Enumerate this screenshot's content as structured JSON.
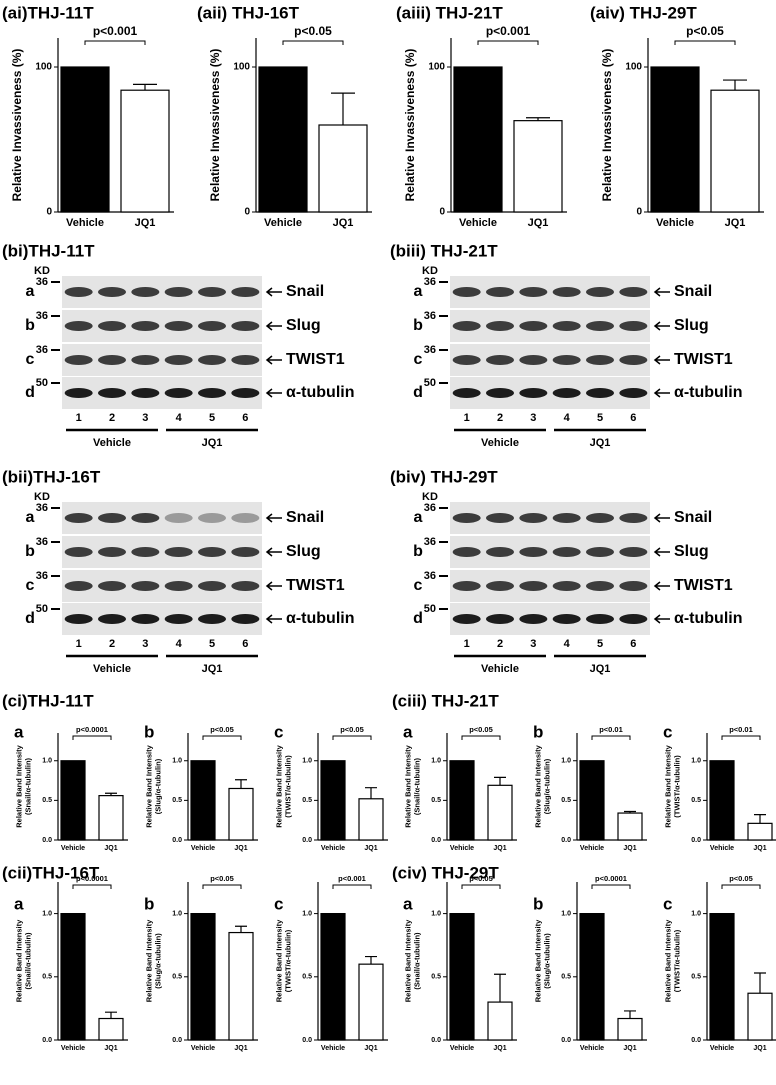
{
  "chart_data": [
    {
      "type": "bar",
      "title": "(ai)THJ-11T",
      "ylabel": [
        "Relative Invassiveness (%)"
      ],
      "categories": [
        "Vehicle",
        "JQ1"
      ],
      "values": [
        100,
        84
      ],
      "errors": [
        null,
        4
      ],
      "colors": [
        "#000000",
        "#ffffff"
      ],
      "annotation": "p<0.001",
      "ylim": [
        0,
        120
      ],
      "yticks": [
        0,
        100
      ]
    },
    {
      "type": "bar",
      "title": "(aii) THJ-16T",
      "ylabel": [
        "Relative Invassiveness (%)"
      ],
      "categories": [
        "Vehicle",
        "JQ1"
      ],
      "values": [
        100,
        60
      ],
      "errors": [
        null,
        22
      ],
      "colors": [
        "#000000",
        "#ffffff"
      ],
      "annotation": "p<0.05",
      "ylim": [
        0,
        120
      ],
      "yticks": [
        0,
        100
      ]
    },
    {
      "type": "bar",
      "title": "(aiii) THJ-21T",
      "ylabel": [
        "Relative Invassiveness (%)"
      ],
      "categories": [
        "Vehicle",
        "JQ1"
      ],
      "values": [
        100,
        63
      ],
      "errors": [
        null,
        2
      ],
      "colors": [
        "#000000",
        "#ffffff"
      ],
      "annotation": "p<0.001",
      "ylim": [
        0,
        120
      ],
      "yticks": [
        0,
        100
      ]
    },
    {
      "type": "bar",
      "title": "(aiv) THJ-29T",
      "ylabel": [
        "Relative Invassiveness (%)"
      ],
      "categories": [
        "Vehicle",
        "JQ1"
      ],
      "values": [
        100,
        84
      ],
      "errors": [
        null,
        7
      ],
      "colors": [
        "#000000",
        "#ffffff"
      ],
      "annotation": "p<0.05",
      "ylim": [
        0,
        120
      ],
      "yticks": [
        0,
        100
      ]
    },
    {
      "type": "bar",
      "title": "a",
      "ylabel": [
        "Relative Band Intensity",
        "(Snail/α-tubulin)"
      ],
      "categories": [
        "Vehicle",
        "JQ1"
      ],
      "values": [
        1,
        0.56
      ],
      "errors": [
        null,
        0.03
      ],
      "colors": [
        "#000000",
        "#ffffff"
      ],
      "annotation": "p<0.0001",
      "ylim": [
        0,
        1.35
      ],
      "yticks": [
        {
          "value": 0,
          "label": "0.0"
        },
        {
          "value": 0.5,
          "label": "0.5"
        },
        {
          "value": 1,
          "label": "1.0"
        }
      ]
    },
    {
      "type": "bar",
      "title": "b",
      "ylabel": [
        "Relative Band Intensity",
        "(Slug/α-tubulin)"
      ],
      "categories": [
        "Vehicle",
        "JQ1"
      ],
      "values": [
        1,
        0.65
      ],
      "errors": [
        null,
        0.11
      ],
      "colors": [
        "#000000",
        "#ffffff"
      ],
      "annotation": "p<0.05",
      "ylim": [
        0,
        1.35
      ],
      "yticks": [
        {
          "value": 0,
          "label": "0.0"
        },
        {
          "value": 0.5,
          "label": "0.5"
        },
        {
          "value": 1,
          "label": "1.0"
        }
      ]
    },
    {
      "type": "bar",
      "title": "c",
      "ylabel": [
        "Relative Band Intensity",
        "(TWIST/α-tubulin)"
      ],
      "categories": [
        "Vehicle",
        "JQ1"
      ],
      "values": [
        1,
        0.52
      ],
      "errors": [
        null,
        0.14
      ],
      "colors": [
        "#000000",
        "#ffffff"
      ],
      "annotation": "p<0.05",
      "ylim": [
        0,
        1.35
      ],
      "yticks": [
        {
          "value": 0,
          "label": "0.0"
        },
        {
          "value": 0.5,
          "label": "0.5"
        },
        {
          "value": 1,
          "label": "1.0"
        }
      ]
    },
    {
      "type": "bar",
      "title": "a",
      "ylabel": [
        "Relative Band Intensity",
        "(Snail/α-tubulin)"
      ],
      "categories": [
        "Vehicle",
        "JQ1"
      ],
      "values": [
        1,
        0.69
      ],
      "errors": [
        null,
        0.1
      ],
      "colors": [
        "#000000",
        "#ffffff"
      ],
      "annotation": "p<0.05",
      "ylim": [
        0,
        1.35
      ],
      "yticks": [
        {
          "value": 0,
          "label": "0.0"
        },
        {
          "value": 0.5,
          "label": "0.5"
        },
        {
          "value": 1,
          "label": "1.0"
        }
      ]
    },
    {
      "type": "bar",
      "title": "b",
      "ylabel": [
        "Relative Band Intensity",
        "(Slug/α-tubulin)"
      ],
      "categories": [
        "Vehicle",
        "JQ1"
      ],
      "values": [
        1,
        0.34
      ],
      "errors": [
        null,
        0.02
      ],
      "colors": [
        "#000000",
        "#ffffff"
      ],
      "annotation": "p<0.01",
      "ylim": [
        0,
        1.35
      ],
      "yticks": [
        {
          "value": 0,
          "label": "0.0"
        },
        {
          "value": 0.5,
          "label": "0.5"
        },
        {
          "value": 1,
          "label": "1.0"
        }
      ]
    },
    {
      "type": "bar",
      "title": "c",
      "ylabel": [
        "Relative Band Intensity",
        "(TWIST/α-tubulin)"
      ],
      "categories": [
        "Vehicle",
        "JQ1"
      ],
      "values": [
        1,
        0.21
      ],
      "errors": [
        null,
        0.11
      ],
      "colors": [
        "#000000",
        "#ffffff"
      ],
      "annotation": "p<0.01",
      "ylim": [
        0,
        1.35
      ],
      "yticks": [
        {
          "value": 0,
          "label": "0.0"
        },
        {
          "value": 0.5,
          "label": "0.5"
        },
        {
          "value": 1,
          "label": "1.0"
        }
      ]
    },
    {
      "type": "bar",
      "title": "a",
      "ylabel": [
        "Relative Band Intensity",
        "(Snail/α-tubulin)"
      ],
      "categories": [
        "Vehicle",
        "JQ1"
      ],
      "values": [
        1,
        0.17
      ],
      "errors": [
        null,
        0.05
      ],
      "colors": [
        "#000000",
        "#ffffff"
      ],
      "annotation": "p<0.0001",
      "ylim": [
        0,
        1.25
      ],
      "yticks": [
        {
          "value": 0,
          "label": "0.0"
        },
        {
          "value": 0.5,
          "label": "0.5"
        },
        {
          "value": 1,
          "label": "1.0"
        }
      ]
    },
    {
      "type": "bar",
      "title": "b",
      "ylabel": [
        "Relative Band Intensity",
        "(Slug/α-tubulin)"
      ],
      "categories": [
        "Vehicle",
        "JQ1"
      ],
      "values": [
        1,
        0.85
      ],
      "errors": [
        null,
        0.05
      ],
      "colors": [
        "#000000",
        "#ffffff"
      ],
      "annotation": "p<0.05",
      "ylim": [
        0,
        1.25
      ],
      "yticks": [
        {
          "value": 0,
          "label": "0.0"
        },
        {
          "value": 0.5,
          "label": "0.5"
        },
        {
          "value": 1,
          "label": "1.0"
        }
      ]
    },
    {
      "type": "bar",
      "title": "c",
      "ylabel": [
        "Relative Band Intensity",
        "(TWIST/α-tubulin)"
      ],
      "categories": [
        "Vehicle",
        "JQ1"
      ],
      "values": [
        1,
        0.6
      ],
      "errors": [
        null,
        0.06
      ],
      "colors": [
        "#000000",
        "#ffffff"
      ],
      "annotation": "p<0.001",
      "ylim": [
        0,
        1.25
      ],
      "yticks": [
        {
          "value": 0,
          "label": "0.0"
        },
        {
          "value": 0.5,
          "label": "0.5"
        },
        {
          "value": 1,
          "label": "1.0"
        }
      ]
    },
    {
      "type": "bar",
      "title": "a",
      "ylabel": [
        "Relative Band Intensity",
        "(Snail/α-tubulin)"
      ],
      "categories": [
        "Vehicle",
        "JQ1"
      ],
      "values": [
        1,
        0.3
      ],
      "errors": [
        null,
        0.22
      ],
      "colors": [
        "#000000",
        "#ffffff"
      ],
      "annotation": "p<0.05",
      "ylim": [
        0,
        1.25
      ],
      "yticks": [
        {
          "value": 0,
          "label": "0.0"
        },
        {
          "value": 0.5,
          "label": "0.5"
        },
        {
          "value": 1,
          "label": "1.0"
        }
      ]
    },
    {
      "type": "bar",
      "title": "b",
      "ylabel": [
        "Relative Band Intensity",
        "(Slug/α-tubulin)"
      ],
      "categories": [
        "Vehicle",
        "JQ1"
      ],
      "values": [
        1,
        0.17
      ],
      "errors": [
        null,
        0.06
      ],
      "colors": [
        "#000000",
        "#ffffff"
      ],
      "annotation": "p<0.0001",
      "ylim": [
        0,
        1.25
      ],
      "yticks": [
        {
          "value": 0,
          "label": "0.0"
        },
        {
          "value": 0.5,
          "label": "0.5"
        },
        {
          "value": 1,
          "label": "1.0"
        }
      ]
    },
    {
      "type": "bar",
      "title": "c",
      "ylabel": [
        "Relative Band Intensity",
        "(TWIST/α-tubulin)"
      ],
      "categories": [
        "Vehicle",
        "JQ1"
      ],
      "values": [
        1,
        0.37
      ],
      "errors": [
        null,
        0.16
      ],
      "colors": [
        "#000000",
        "#ffffff"
      ],
      "annotation": "p<0.05",
      "ylim": [
        0,
        1.25
      ],
      "yticks": [
        {
          "value": 0,
          "label": "0.0"
        },
        {
          "value": 0.5,
          "label": "0.5"
        },
        {
          "value": 1,
          "label": "1.0"
        }
      ]
    }
  ],
  "group_titles": [
    "(ci)THJ-11T",
    "(ciii) THJ-21T",
    "(cii)THJ-16T",
    "(civ) THJ-29T"
  ],
  "blots": [
    {
      "title": "(bi)THJ-11T",
      "kd": "KD",
      "rows": [
        {
          "letter": "a",
          "marker": "36",
          "protein": "Snail"
        },
        {
          "letter": "b",
          "marker": "36",
          "protein": "Slug"
        },
        {
          "letter": "c",
          "marker": "36",
          "protein": "TWIST1"
        },
        {
          "letter": "d",
          "marker": "50",
          "protein": "α-tubulin"
        }
      ],
      "lanes": [
        "1",
        "2",
        "3",
        "4",
        "5",
        "6"
      ],
      "groups": [
        "Vehicle",
        "JQ1"
      ]
    },
    {
      "title": "(biii) THJ-21T",
      "kd": "KD",
      "rows": [
        {
          "letter": "a",
          "marker": "36",
          "protein": "Snail"
        },
        {
          "letter": "b",
          "marker": "36",
          "protein": "Slug"
        },
        {
          "letter": "c",
          "marker": "36",
          "protein": "TWIST1"
        },
        {
          "letter": "d",
          "marker": "50",
          "protein": "α-tubulin"
        }
      ],
      "lanes": [
        "1",
        "2",
        "3",
        "4",
        "5",
        "6"
      ],
      "groups": [
        "Vehicle",
        "JQ1"
      ]
    },
    {
      "title": "(bii)THJ-16T",
      "kd": "KD",
      "rows": [
        {
          "letter": "a",
          "marker": "36",
          "protein": "Snail"
        },
        {
          "letter": "b",
          "marker": "36",
          "protein": "Slug"
        },
        {
          "letter": "c",
          "marker": "36",
          "protein": "TWIST1"
        },
        {
          "letter": "d",
          "marker": "50",
          "protein": "α-tubulin"
        }
      ],
      "lanes": [
        "1",
        "2",
        "3",
        "4",
        "5",
        "6"
      ],
      "groups": [
        "Vehicle",
        "JQ1"
      ]
    },
    {
      "title": "(biv) THJ-29T",
      "kd": "KD",
      "rows": [
        {
          "letter": "a",
          "marker": "36",
          "protein": "Snail"
        },
        {
          "letter": "b",
          "marker": "36",
          "protein": "Slug"
        },
        {
          "letter": "c",
          "marker": "36",
          "protein": "TWIST1"
        },
        {
          "letter": "d",
          "marker": "50",
          "protein": "α-tubulin"
        }
      ],
      "lanes": [
        "1",
        "2",
        "3",
        "4",
        "5",
        "6"
      ],
      "groups": [
        "Vehicle",
        "JQ1"
      ]
    }
  ]
}
